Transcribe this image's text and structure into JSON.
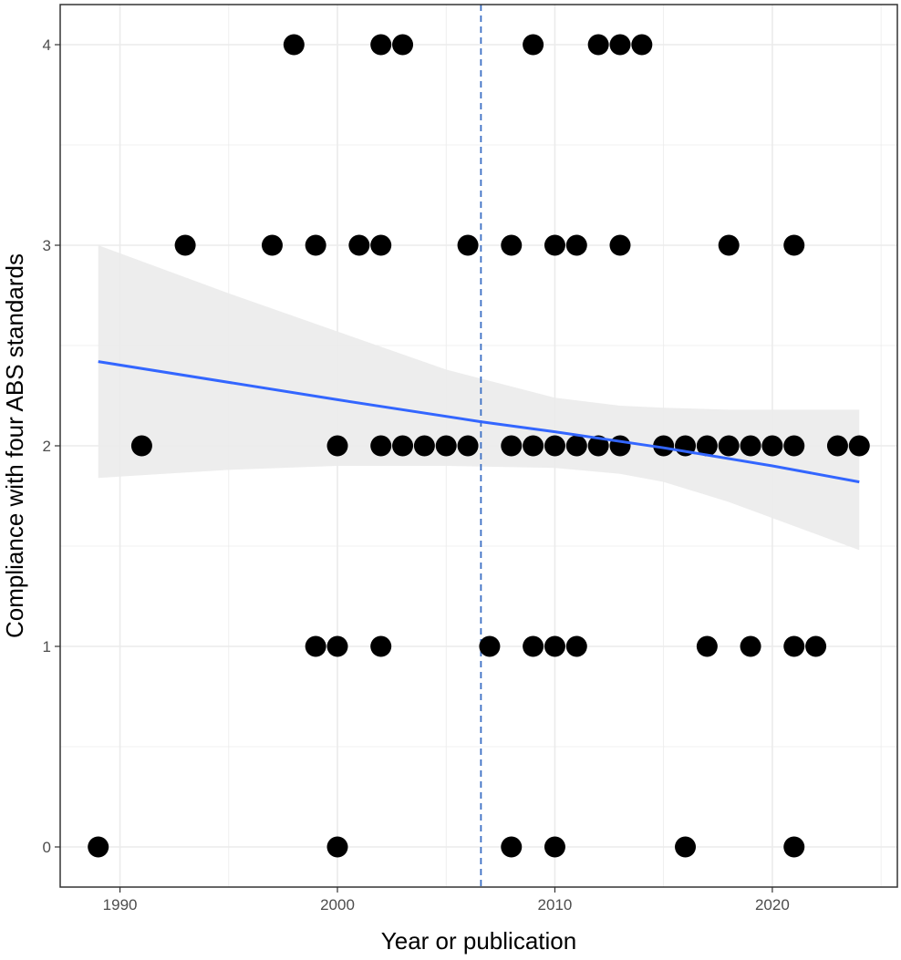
{
  "chart_data": {
    "type": "scatter",
    "title": "",
    "xlabel": "Year or publication",
    "ylabel": "Compliance with four ABS standards",
    "xlim": [
      1987.25,
      2025.75
    ],
    "ylim": [
      -0.2,
      4.2
    ],
    "x_ticks": [
      1990,
      2000,
      2010,
      2020
    ],
    "x_tick_labels": [
      "1990",
      "2000",
      "2010",
      "2020"
    ],
    "y_ticks": [
      0,
      1,
      2,
      3,
      4
    ],
    "y_tick_labels": [
      "0",
      "1",
      "2",
      "3",
      "4"
    ],
    "x_minor_gridlines": [
      1995,
      2005,
      2015,
      2025
    ],
    "y_minor_gridlines": [
      0.5,
      1.5,
      2.5,
      3.5
    ],
    "grid": true,
    "points": [
      {
        "x": 1998,
        "y": 4
      },
      {
        "x": 2002,
        "y": 4
      },
      {
        "x": 2003,
        "y": 4
      },
      {
        "x": 2009,
        "y": 4
      },
      {
        "x": 2012,
        "y": 4
      },
      {
        "x": 2013,
        "y": 4
      },
      {
        "x": 2014,
        "y": 4
      },
      {
        "x": 1993,
        "y": 3
      },
      {
        "x": 1997,
        "y": 3
      },
      {
        "x": 1999,
        "y": 3
      },
      {
        "x": 2001,
        "y": 3
      },
      {
        "x": 2002,
        "y": 3
      },
      {
        "x": 2006,
        "y": 3
      },
      {
        "x": 2008,
        "y": 3
      },
      {
        "x": 2010,
        "y": 3
      },
      {
        "x": 2011,
        "y": 3
      },
      {
        "x": 2013,
        "y": 3
      },
      {
        "x": 2018,
        "y": 3
      },
      {
        "x": 2021,
        "y": 3
      },
      {
        "x": 1991,
        "y": 2
      },
      {
        "x": 2000,
        "y": 2
      },
      {
        "x": 2002,
        "y": 2
      },
      {
        "x": 2003,
        "y": 2
      },
      {
        "x": 2004,
        "y": 2
      },
      {
        "x": 2005,
        "y": 2
      },
      {
        "x": 2006,
        "y": 2
      },
      {
        "x": 2008,
        "y": 2
      },
      {
        "x": 2009,
        "y": 2
      },
      {
        "x": 2010,
        "y": 2
      },
      {
        "x": 2011,
        "y": 2
      },
      {
        "x": 2012,
        "y": 2
      },
      {
        "x": 2013,
        "y": 2
      },
      {
        "x": 2015,
        "y": 2
      },
      {
        "x": 2016,
        "y": 2
      },
      {
        "x": 2017,
        "y": 2
      },
      {
        "x": 2018,
        "y": 2
      },
      {
        "x": 2019,
        "y": 2
      },
      {
        "x": 2020,
        "y": 2
      },
      {
        "x": 2021,
        "y": 2
      },
      {
        "x": 2023,
        "y": 2
      },
      {
        "x": 2024,
        "y": 2
      },
      {
        "x": 1999,
        "y": 1
      },
      {
        "x": 2000,
        "y": 1
      },
      {
        "x": 2002,
        "y": 1
      },
      {
        "x": 2007,
        "y": 1
      },
      {
        "x": 2009,
        "y": 1
      },
      {
        "x": 2010,
        "y": 1
      },
      {
        "x": 2011,
        "y": 1
      },
      {
        "x": 2017,
        "y": 1
      },
      {
        "x": 2019,
        "y": 1
      },
      {
        "x": 2021,
        "y": 1
      },
      {
        "x": 2022,
        "y": 1
      },
      {
        "x": 1989,
        "y": 0
      },
      {
        "x": 2000,
        "y": 0
      },
      {
        "x": 2008,
        "y": 0
      },
      {
        "x": 2010,
        "y": 0
      },
      {
        "x": 2016,
        "y": 0
      },
      {
        "x": 2021,
        "y": 0
      }
    ],
    "trend_line": {
      "x": [
        1989,
        2000,
        2006.6,
        2010,
        2015,
        2020,
        2024
      ],
      "y": [
        2.42,
        2.23,
        2.12,
        2.07,
        1.99,
        1.9,
        1.82
      ]
    },
    "confidence_band": {
      "x": [
        1989,
        1995,
        2000,
        2005,
        2010,
        2013,
        2015,
        2018,
        2020,
        2024
      ],
      "upper": [
        3.0,
        2.76,
        2.57,
        2.38,
        2.24,
        2.2,
        2.19,
        2.18,
        2.18,
        2.18
      ],
      "lower": [
        1.84,
        1.88,
        1.9,
        1.9,
        1.89,
        1.86,
        1.82,
        1.72,
        1.64,
        1.48
      ]
    },
    "vline": {
      "x": 2006.6,
      "style": "dashed"
    },
    "colors": {
      "points": "#000000",
      "trend_line": "#3366ff",
      "confidence_band": "#ebebeb",
      "vline": "#3b6fc4",
      "grid": "#ebebeb",
      "panel_border": "#333333"
    }
  }
}
